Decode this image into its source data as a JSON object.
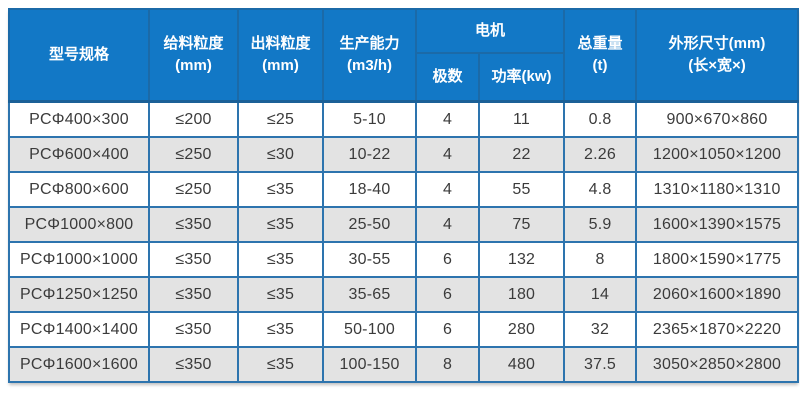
{
  "header": {
    "model": "型号规格",
    "feed_size": "给料粒度\n(mm)",
    "output_size": "出料粒度\n(mm)",
    "capacity": "生产能力\n(m3/h)",
    "motor": "电机",
    "poles": "极数",
    "power": "功率(kw)",
    "weight": "总重量\n(t)",
    "dimensions": "外形尺寸(mm)\n(长×宽×)"
  },
  "colors": {
    "header_bg": "#1278c6",
    "header_text": "#ffffff",
    "grid_border": "#2d74ae",
    "outer_border": "#1b6097",
    "row_bg": "#ffffff",
    "row_alt_bg": "#e3e3e3",
    "body_text": "#3b3b3b"
  },
  "chart_data": {
    "type": "table",
    "columns": [
      "型号规格",
      "给料粒度(mm)",
      "出料粒度(mm)",
      "生产能力(m3/h)",
      "电机 极数",
      "电机 功率(kw)",
      "总重量(t)",
      "外形尺寸(mm)(长×宽×)"
    ],
    "rows": [
      [
        "PCΦ400×300",
        "≤200",
        "≤25",
        "5-10",
        "4",
        "11",
        "0.8",
        "900×670×860"
      ],
      [
        "PCΦ600×400",
        "≤250",
        "≤30",
        "10-22",
        "4",
        "22",
        "2.26",
        "1200×1050×1200"
      ],
      [
        "PCΦ800×600",
        "≤250",
        "≤35",
        "18-40",
        "4",
        "55",
        "4.8",
        "1310×1180×1310"
      ],
      [
        "PCΦ1000×800",
        "≤350",
        "≤35",
        "25-50",
        "4",
        "75",
        "5.9",
        "1600×1390×1575"
      ],
      [
        "PCΦ1000×1000",
        "≤350",
        "≤35",
        "30-55",
        "6",
        "132",
        "8",
        "1800×1590×1775"
      ],
      [
        "PCΦ1250×1250",
        "≤350",
        "≤35",
        "35-65",
        "6",
        "180",
        "14",
        "2060×1600×1890"
      ],
      [
        "PCΦ1400×1400",
        "≤350",
        "≤35",
        "50-100",
        "6",
        "280",
        "32",
        "2365×1870×2220"
      ],
      [
        "PCΦ1600×1600",
        "≤350",
        "≤35",
        "100-150",
        "8",
        "480",
        "37.5",
        "3050×2850×2800"
      ]
    ]
  }
}
